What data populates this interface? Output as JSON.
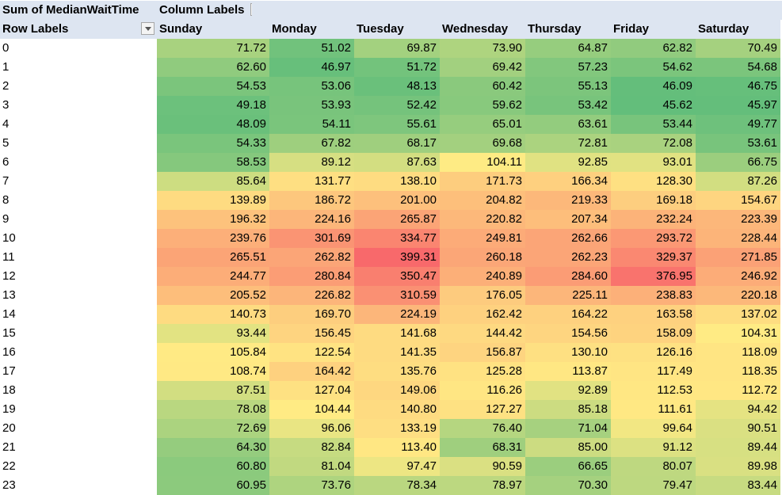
{
  "pivot": {
    "value_field": "Sum of MedianWaitTime",
    "column_labels": "Column Labels",
    "row_labels": "Row Labels",
    "columns": [
      "Sunday",
      "Monday",
      "Tuesday",
      "Wednesday",
      "Thursday",
      "Friday",
      "Saturday"
    ],
    "rows": [
      {
        "label": "0",
        "values": [
          "71.72",
          "51.02",
          "69.87",
          "73.90",
          "64.87",
          "62.82",
          "70.49"
        ]
      },
      {
        "label": "1",
        "values": [
          "62.60",
          "46.97",
          "51.72",
          "69.42",
          "57.23",
          "54.62",
          "54.68"
        ]
      },
      {
        "label": "2",
        "values": [
          "54.53",
          "53.06",
          "48.13",
          "60.42",
          "55.13",
          "46.09",
          "46.75"
        ]
      },
      {
        "label": "3",
        "values": [
          "49.18",
          "53.93",
          "52.42",
          "59.62",
          "53.42",
          "45.62",
          "45.97"
        ]
      },
      {
        "label": "4",
        "values": [
          "48.09",
          "54.11",
          "55.61",
          "65.01",
          "63.61",
          "53.44",
          "49.77"
        ]
      },
      {
        "label": "5",
        "values": [
          "54.33",
          "67.82",
          "68.17",
          "69.68",
          "72.81",
          "72.08",
          "53.61"
        ]
      },
      {
        "label": "6",
        "values": [
          "58.53",
          "89.12",
          "87.63",
          "104.11",
          "92.85",
          "93.01",
          "66.75"
        ]
      },
      {
        "label": "7",
        "values": [
          "85.64",
          "131.77",
          "138.10",
          "171.73",
          "166.34",
          "128.30",
          "87.26"
        ]
      },
      {
        "label": "8",
        "values": [
          "139.89",
          "186.72",
          "201.00",
          "204.82",
          "219.33",
          "169.18",
          "154.67"
        ]
      },
      {
        "label": "9",
        "values": [
          "196.32",
          "224.16",
          "265.87",
          "220.82",
          "207.34",
          "232.24",
          "223.39"
        ]
      },
      {
        "label": "10",
        "values": [
          "239.76",
          "301.69",
          "334.77",
          "249.81",
          "262.66",
          "293.72",
          "228.44"
        ]
      },
      {
        "label": "11",
        "values": [
          "265.51",
          "262.82",
          "399.31",
          "260.18",
          "262.23",
          "329.37",
          "271.85"
        ]
      },
      {
        "label": "12",
        "values": [
          "244.77",
          "280.84",
          "350.47",
          "240.89",
          "284.60",
          "376.95",
          "246.92"
        ]
      },
      {
        "label": "13",
        "values": [
          "205.52",
          "226.82",
          "310.59",
          "176.05",
          "225.11",
          "238.83",
          "220.18"
        ]
      },
      {
        "label": "14",
        "values": [
          "140.73",
          "169.70",
          "224.19",
          "162.42",
          "164.22",
          "163.58",
          "137.02"
        ]
      },
      {
        "label": "15",
        "values": [
          "93.44",
          "156.45",
          "141.68",
          "144.42",
          "154.56",
          "158.09",
          "104.31"
        ]
      },
      {
        "label": "16",
        "values": [
          "105.84",
          "122.54",
          "141.35",
          "156.87",
          "130.10",
          "126.16",
          "118.09"
        ]
      },
      {
        "label": "17",
        "values": [
          "108.74",
          "164.42",
          "135.76",
          "125.28",
          "113.87",
          "117.49",
          "118.35"
        ]
      },
      {
        "label": "18",
        "values": [
          "87.51",
          "127.04",
          "149.06",
          "116.26",
          "92.89",
          "112.53",
          "112.72"
        ]
      },
      {
        "label": "19",
        "values": [
          "78.08",
          "104.44",
          "140.80",
          "127.27",
          "85.18",
          "111.61",
          "94.42"
        ]
      },
      {
        "label": "20",
        "values": [
          "72.69",
          "96.06",
          "133.19",
          "76.40",
          "71.04",
          "99.64",
          "90.51"
        ]
      },
      {
        "label": "21",
        "values": [
          "64.30",
          "82.84",
          "113.40",
          "68.31",
          "85.00",
          "91.12",
          "89.44"
        ]
      },
      {
        "label": "22",
        "values": [
          "60.80",
          "81.04",
          "97.47",
          "90.59",
          "66.65",
          "80.07",
          "89.98"
        ]
      },
      {
        "label": "23",
        "values": [
          "60.95",
          "73.76",
          "78.34",
          "78.97",
          "70.30",
          "79.47",
          "83.44"
        ]
      }
    ]
  },
  "color_scale": {
    "min_color": "#63be7b",
    "mid_color": "#ffeb84",
    "max_color": "#f8696b"
  },
  "icons": {
    "filter_dropdown": "chevron-down-icon"
  }
}
